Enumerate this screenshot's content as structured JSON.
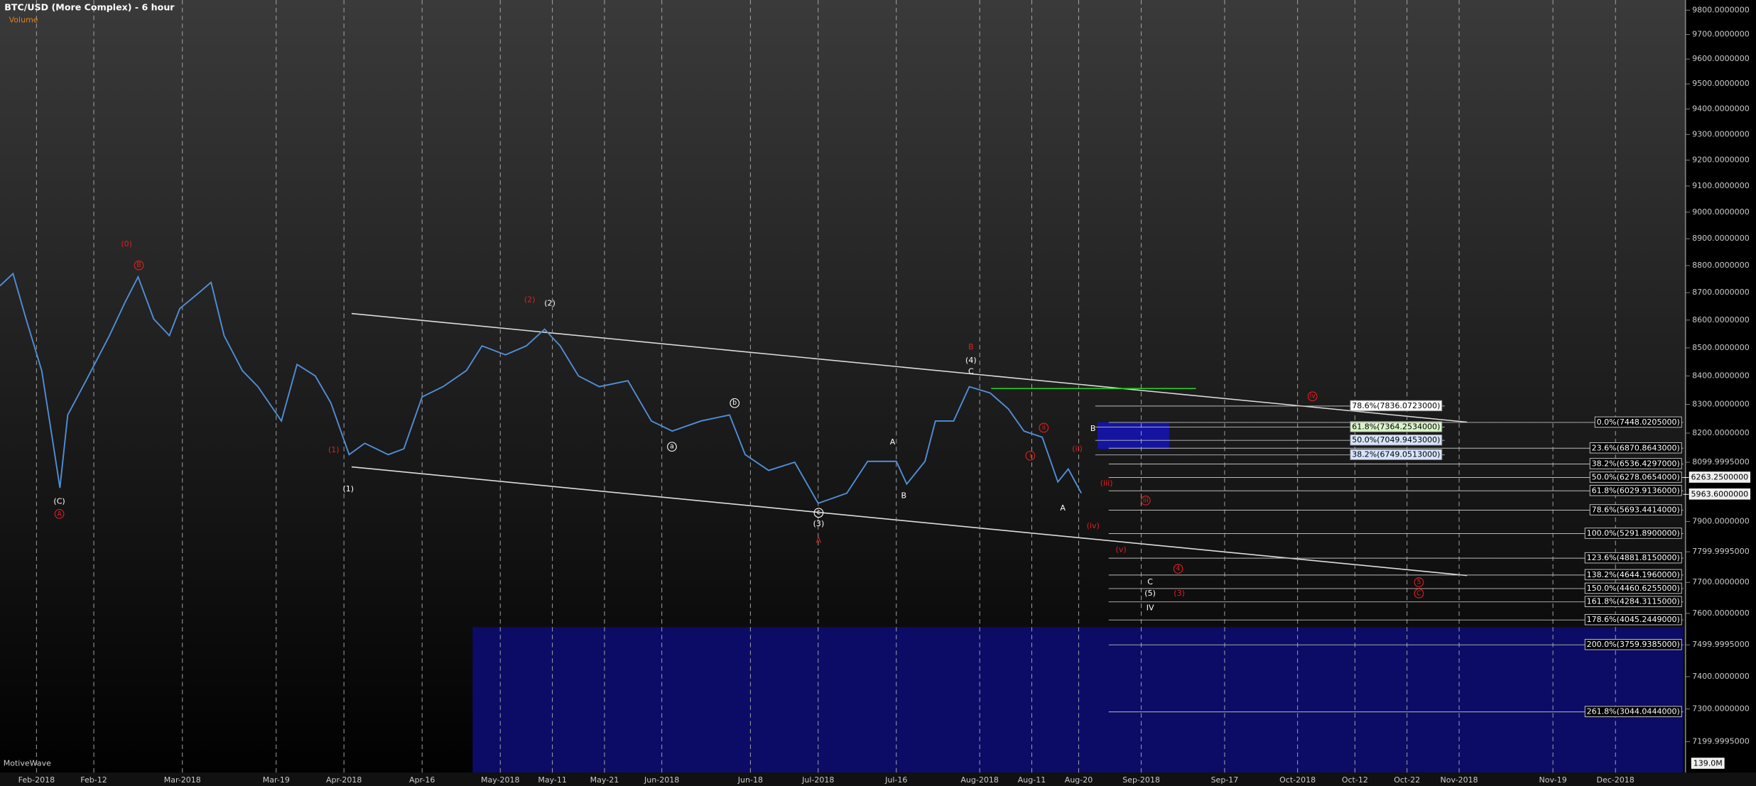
{
  "chart_data": {
    "type": "line",
    "title": "BTC/USD (More Complex) - 6 hour",
    "subtitle": "Volume",
    "watermark": "MotiveWave",
    "volume_tag": "139.0M",
    "log_y": true,
    "grid": true,
    "color": "#4f8fd8",
    "x": [
      25,
      27.5,
      30,
      33,
      35,
      36.5,
      38,
      41.5,
      46,
      49,
      51.5,
      54.5,
      57.5,
      59.5,
      63,
      65.5,
      68,
      71.5,
      74.5,
      79,
      82,
      85.5,
      88.5,
      92,
      95,
      99.5,
      102.5,
      106,
      110,
      114.5,
      117.5,
      122,
      126,
      129.5,
      132.5,
      136,
      140,
      145.5,
      150,
      154,
      159.5,
      165,
      168,
      172.5,
      177.5,
      182,
      187.5,
      191.5,
      197,
      199,
      202.5,
      204.5,
      208,
      211,
      215,
      218.5,
      221.5,
      225,
      228,
      230,
      232.5
    ],
    "values": [
      8725,
      8770,
      8604,
      8419,
      8186,
      8013,
      8263,
      8383,
      8544,
      8665,
      8758,
      8604,
      8544,
      8642,
      8697,
      8738,
      8544,
      8419,
      8362,
      8242,
      8441,
      8400,
      8305,
      8126,
      8165,
      8126,
      8146,
      8326,
      8362,
      8419,
      8507,
      8475,
      8507,
      8567,
      8507,
      8400,
      8362,
      8383,
      8242,
      8207,
      8242,
      8263,
      8126,
      8072,
      8100,
      7961,
      7995,
      8103,
      8103,
      8026,
      8103,
      8242,
      8242,
      8362,
      8340,
      8284,
      8207,
      8186,
      8033,
      8077,
      7995
    ],
    "xlim": [
      25,
      348
    ],
    "ylim": [
      7107,
      9842
    ],
    "xticks": [
      {
        "value": 32,
        "label": "Feb-2018"
      },
      {
        "value": 43,
        "label": "Feb-12"
      },
      {
        "value": 60,
        "label": "Mar-2018"
      },
      {
        "value": 78,
        "label": "Mar-19"
      },
      {
        "value": 91,
        "label": "Apr-2018"
      },
      {
        "value": 106,
        "label": "Apr-16"
      },
      {
        "value": 121,
        "label": "May-2018"
      },
      {
        "value": 131,
        "label": "May-11"
      },
      {
        "value": 141,
        "label": "May-21"
      },
      {
        "value": 152,
        "label": "Jun-2018"
      },
      {
        "value": 169,
        "label": "Jun-18"
      },
      {
        "value": 182,
        "label": "Jul-2018"
      },
      {
        "value": 197,
        "label": "Jul-16"
      },
      {
        "value": 213,
        "label": "Aug-2018"
      },
      {
        "value": 223,
        "label": "Aug-11"
      },
      {
        "value": 232,
        "label": "Aug-20"
      },
      {
        "value": 244,
        "label": "Sep-2018"
      },
      {
        "value": 260,
        "label": "Sep-17"
      },
      {
        "value": 274,
        "label": "Oct-2018"
      },
      {
        "value": 285,
        "label": "Oct-12"
      },
      {
        "value": 295,
        "label": "Oct-22"
      },
      {
        "value": 305,
        "label": "Nov-2018"
      },
      {
        "value": 323,
        "label": "Nov-19"
      },
      {
        "value": 335,
        "label": "Dec-2018"
      }
    ],
    "yticks": [
      {
        "value": 9800,
        "label": "9800.0000000"
      },
      {
        "value": 9700,
        "label": "9700.0000000"
      },
      {
        "value": 9600,
        "label": "9600.0000000"
      },
      {
        "value": 9500,
        "label": "9500.0000000"
      },
      {
        "value": 9400,
        "label": "9400.0000000"
      },
      {
        "value": 9300,
        "label": "9300.0000000"
      },
      {
        "value": 9200,
        "label": "9200.0000000"
      },
      {
        "value": 9100,
        "label": "9100.0000000"
      },
      {
        "value": 9000,
        "label": "9000.0000000"
      },
      {
        "value": 8900,
        "label": "8900.0000000"
      },
      {
        "value": 8800,
        "label": "8800.0000000"
      },
      {
        "value": 8700,
        "label": "8700.0000000"
      },
      {
        "value": 8600,
        "label": "8600.0000000"
      },
      {
        "value": 8500,
        "label": "8500.0000000"
      },
      {
        "value": 8400,
        "label": "8400.0000000"
      },
      {
        "value": 8300,
        "label": "8300.0000000"
      },
      {
        "value": 8200,
        "label": "8200.0000000"
      },
      {
        "value": 8099.9995,
        "label": "8099.9995000"
      },
      {
        "value": 7900,
        "label": "7900.0000000"
      },
      {
        "value": 7799.9995,
        "label": "7799.9995000"
      },
      {
        "value": 7700,
        "label": "7700.0000000"
      },
      {
        "value": 7600,
        "label": "7600.0000000"
      },
      {
        "value": 7499.9995,
        "label": "7499.9995000"
      },
      {
        "value": 7400,
        "label": "7400.0000000"
      },
      {
        "value": 7300,
        "label": "7300.0000000"
      },
      {
        "value": 7199.9995,
        "label": "7199.9995000"
      }
    ],
    "price_tags": [
      {
        "value": 8048,
        "label": "6263.2500000"
      },
      {
        "value": 7991,
        "label": "5963.6000000"
      }
    ],
    "fib_retracement": [
      {
        "value": 8294,
        "label": "78.6%(7836.0723000)",
        "color": "#ffffff"
      },
      {
        "value": 8221,
        "label": "61.8%(7364.2534000)",
        "color": "#d8f5c8"
      },
      {
        "value": 8175,
        "label": "50.0%(7049.9453000)",
        "color": "#d6e4ff"
      },
      {
        "value": 8125,
        "label": "38.2%(6749.0513000)",
        "color": "#d6e4ff"
      }
    ],
    "fib_extension": [
      {
        "value": 8237,
        "label": "0.0%(7448.0205000)"
      },
      {
        "value": 8148,
        "label": "23.6%(6870.8643000)"
      },
      {
        "value": 8094,
        "label": "38.2%(6536.4297000)"
      },
      {
        "value": 8048,
        "label": "50.0%(6278.0654000)"
      },
      {
        "value": 8003,
        "label": "61.8%(6029.9136000)"
      },
      {
        "value": 7938,
        "label": "78.6%(5693.4414000)"
      },
      {
        "value": 7860,
        "label": "100.0%(5291.8900000)"
      },
      {
        "value": 7779,
        "label": "123.6%(4881.8150000)"
      },
      {
        "value": 7724,
        "label": "138.2%(4644.1960000)"
      },
      {
        "value": 7680,
        "label": "150.0%(4460.6255000)"
      },
      {
        "value": 7637,
        "label": "161.8%(4284.3115000)"
      },
      {
        "value": 7579,
        "label": "178.6%(4045.2449000)"
      },
      {
        "value": 7500,
        "label": "200.0%(3759.9385000)"
      },
      {
        "value": 7291,
        "label": "261.8%(3044.0444000)"
      }
    ],
    "wave_labels": [
      {
        "text": "(C)",
        "color": "#ffffff"
      },
      {
        "text": "A",
        "color": "#e02020"
      },
      {
        "text": "(0)",
        "color": "#e02020"
      },
      {
        "text": "B",
        "color": "#e02020"
      },
      {
        "text": "(1)",
        "color": "#e02020"
      },
      {
        "text": "(1)",
        "color": "#ffffff"
      },
      {
        "text": "(2)",
        "color": "#e02020"
      },
      {
        "text": "(2)",
        "color": "#ffffff"
      },
      {
        "text": "b",
        "color": "#ffffff"
      },
      {
        "text": "a",
        "color": "#ffffff"
      },
      {
        "text": "c",
        "color": "#ffffff"
      },
      {
        "text": "(3)",
        "color": "#ffffff"
      },
      {
        "text": "A",
        "color": "#e02020"
      },
      {
        "text": "A",
        "color": "#ffffff"
      },
      {
        "text": "B",
        "color": "#ffffff"
      },
      {
        "text": "B",
        "color": "#e02020"
      },
      {
        "text": "(4)",
        "color": "#ffffff"
      },
      {
        "text": "C",
        "color": "#ffffff"
      },
      {
        "text": "ii",
        "color": "#e02020"
      },
      {
        "text": "i",
        "color": "#e02020"
      },
      {
        "text": "(ii)",
        "color": "#e02020"
      },
      {
        "text": "A",
        "color": "#ffffff"
      },
      {
        "text": "B",
        "color": "#ffffff"
      },
      {
        "text": "(iii)",
        "color": "#e02020"
      },
      {
        "text": "(iv)",
        "color": "#e02020"
      },
      {
        "text": "iii",
        "color": "#e02020"
      },
      {
        "text": "(v)",
        "color": "#e02020"
      },
      {
        "text": "C",
        "color": "#ffffff"
      },
      {
        "text": "(5)",
        "color": "#ffffff"
      },
      {
        "text": "IV",
        "color": "#ffffff"
      },
      {
        "text": "4",
        "color": "#e02020"
      },
      {
        "text": "(3)",
        "color": "#e02020"
      },
      {
        "text": "iv",
        "color": "#e02020"
      },
      {
        "text": "5",
        "color": "#e02020"
      },
      {
        "text": "C",
        "color": "#e02020"
      }
    ]
  }
}
